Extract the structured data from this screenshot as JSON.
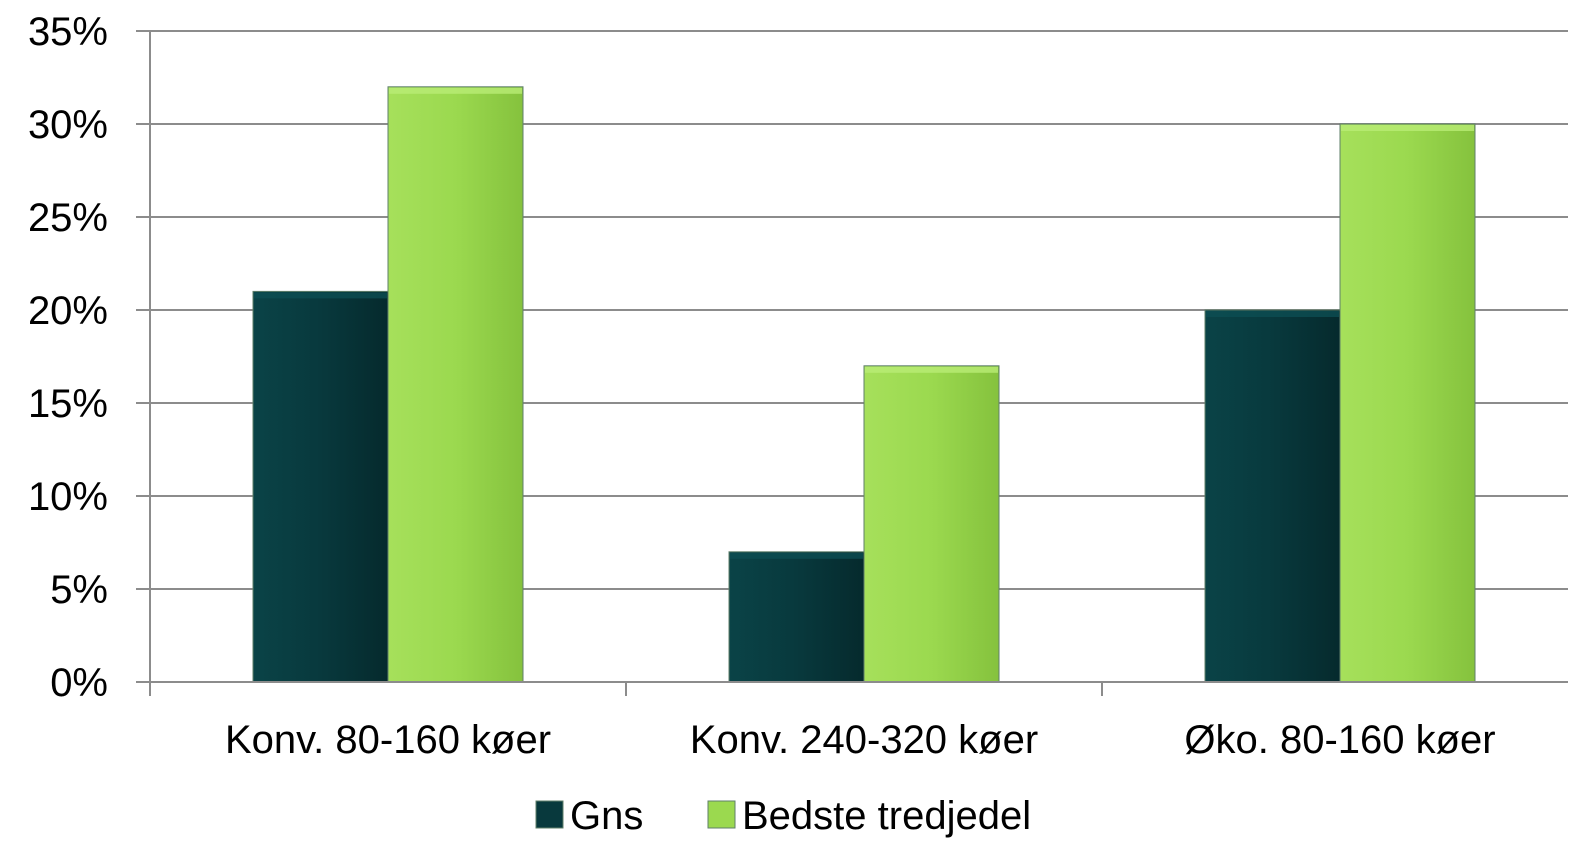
{
  "chart_data": {
    "type": "bar",
    "categories": [
      "Konv. 80-160 køer",
      "Konv. 240-320 køer",
      "Øko. 80-160 køer"
    ],
    "series": [
      {
        "name": "Gns",
        "values": [
          21,
          7,
          20
        ],
        "color": "#08393d"
      },
      {
        "name": "Bedste tredjedel",
        "values": [
          32,
          17,
          30
        ],
        "color": "#9bd94f"
      }
    ],
    "yticks": [
      "0%",
      "5%",
      "10%",
      "15%",
      "20%",
      "25%",
      "30%",
      "35%"
    ],
    "ylim": [
      0,
      35
    ],
    "ytick_step": 5,
    "grid": true,
    "legend_position": "bottom"
  }
}
